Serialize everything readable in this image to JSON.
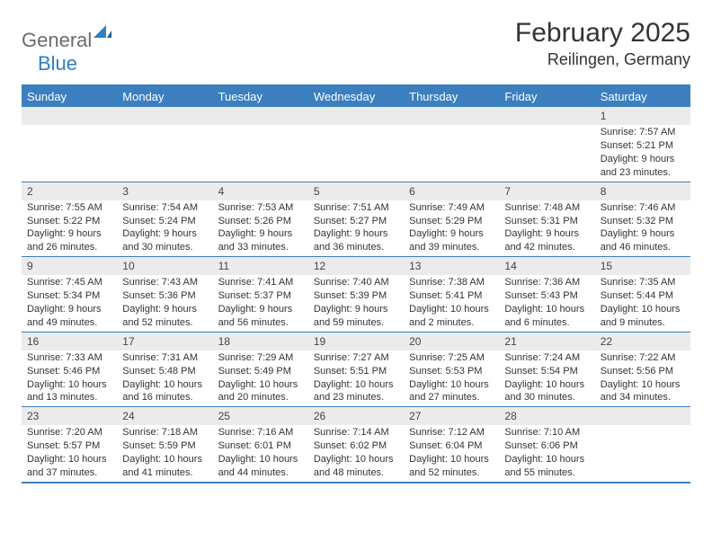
{
  "logo": {
    "text1": "General",
    "text2": "Blue"
  },
  "title": "February 2025",
  "location": "Reilingen, Germany",
  "colors": {
    "header_bg": "#3b7fbf",
    "header_text": "#ffffff",
    "daynum_bg": "#ebebeb",
    "border": "#3b7fbf",
    "logo_gray": "#6b6b6b",
    "logo_blue": "#2f7fc1",
    "text": "#333333",
    "page_bg": "#ffffff"
  },
  "day_headers": [
    "Sunday",
    "Monday",
    "Tuesday",
    "Wednesday",
    "Thursday",
    "Friday",
    "Saturday"
  ],
  "weeks": [
    [
      {
        "n": "",
        "lines": []
      },
      {
        "n": "",
        "lines": []
      },
      {
        "n": "",
        "lines": []
      },
      {
        "n": "",
        "lines": []
      },
      {
        "n": "",
        "lines": []
      },
      {
        "n": "",
        "lines": []
      },
      {
        "n": "1",
        "lines": [
          "Sunrise: 7:57 AM",
          "Sunset: 5:21 PM",
          "Daylight: 9 hours and 23 minutes."
        ]
      }
    ],
    [
      {
        "n": "2",
        "lines": [
          "Sunrise: 7:55 AM",
          "Sunset: 5:22 PM",
          "Daylight: 9 hours and 26 minutes."
        ]
      },
      {
        "n": "3",
        "lines": [
          "Sunrise: 7:54 AM",
          "Sunset: 5:24 PM",
          "Daylight: 9 hours and 30 minutes."
        ]
      },
      {
        "n": "4",
        "lines": [
          "Sunrise: 7:53 AM",
          "Sunset: 5:26 PM",
          "Daylight: 9 hours and 33 minutes."
        ]
      },
      {
        "n": "5",
        "lines": [
          "Sunrise: 7:51 AM",
          "Sunset: 5:27 PM",
          "Daylight: 9 hours and 36 minutes."
        ]
      },
      {
        "n": "6",
        "lines": [
          "Sunrise: 7:49 AM",
          "Sunset: 5:29 PM",
          "Daylight: 9 hours and 39 minutes."
        ]
      },
      {
        "n": "7",
        "lines": [
          "Sunrise: 7:48 AM",
          "Sunset: 5:31 PM",
          "Daylight: 9 hours and 42 minutes."
        ]
      },
      {
        "n": "8",
        "lines": [
          "Sunrise: 7:46 AM",
          "Sunset: 5:32 PM",
          "Daylight: 9 hours and 46 minutes."
        ]
      }
    ],
    [
      {
        "n": "9",
        "lines": [
          "Sunrise: 7:45 AM",
          "Sunset: 5:34 PM",
          "Daylight: 9 hours and 49 minutes."
        ]
      },
      {
        "n": "10",
        "lines": [
          "Sunrise: 7:43 AM",
          "Sunset: 5:36 PM",
          "Daylight: 9 hours and 52 minutes."
        ]
      },
      {
        "n": "11",
        "lines": [
          "Sunrise: 7:41 AM",
          "Sunset: 5:37 PM",
          "Daylight: 9 hours and 56 minutes."
        ]
      },
      {
        "n": "12",
        "lines": [
          "Sunrise: 7:40 AM",
          "Sunset: 5:39 PM",
          "Daylight: 9 hours and 59 minutes."
        ]
      },
      {
        "n": "13",
        "lines": [
          "Sunrise: 7:38 AM",
          "Sunset: 5:41 PM",
          "Daylight: 10 hours and 2 minutes."
        ]
      },
      {
        "n": "14",
        "lines": [
          "Sunrise: 7:36 AM",
          "Sunset: 5:43 PM",
          "Daylight: 10 hours and 6 minutes."
        ]
      },
      {
        "n": "15",
        "lines": [
          "Sunrise: 7:35 AM",
          "Sunset: 5:44 PM",
          "Daylight: 10 hours and 9 minutes."
        ]
      }
    ],
    [
      {
        "n": "16",
        "lines": [
          "Sunrise: 7:33 AM",
          "Sunset: 5:46 PM",
          "Daylight: 10 hours and 13 minutes."
        ]
      },
      {
        "n": "17",
        "lines": [
          "Sunrise: 7:31 AM",
          "Sunset: 5:48 PM",
          "Daylight: 10 hours and 16 minutes."
        ]
      },
      {
        "n": "18",
        "lines": [
          "Sunrise: 7:29 AM",
          "Sunset: 5:49 PM",
          "Daylight: 10 hours and 20 minutes."
        ]
      },
      {
        "n": "19",
        "lines": [
          "Sunrise: 7:27 AM",
          "Sunset: 5:51 PM",
          "Daylight: 10 hours and 23 minutes."
        ]
      },
      {
        "n": "20",
        "lines": [
          "Sunrise: 7:25 AM",
          "Sunset: 5:53 PM",
          "Daylight: 10 hours and 27 minutes."
        ]
      },
      {
        "n": "21",
        "lines": [
          "Sunrise: 7:24 AM",
          "Sunset: 5:54 PM",
          "Daylight: 10 hours and 30 minutes."
        ]
      },
      {
        "n": "22",
        "lines": [
          "Sunrise: 7:22 AM",
          "Sunset: 5:56 PM",
          "Daylight: 10 hours and 34 minutes."
        ]
      }
    ],
    [
      {
        "n": "23",
        "lines": [
          "Sunrise: 7:20 AM",
          "Sunset: 5:57 PM",
          "Daylight: 10 hours and 37 minutes."
        ]
      },
      {
        "n": "24",
        "lines": [
          "Sunrise: 7:18 AM",
          "Sunset: 5:59 PM",
          "Daylight: 10 hours and 41 minutes."
        ]
      },
      {
        "n": "25",
        "lines": [
          "Sunrise: 7:16 AM",
          "Sunset: 6:01 PM",
          "Daylight: 10 hours and 44 minutes."
        ]
      },
      {
        "n": "26",
        "lines": [
          "Sunrise: 7:14 AM",
          "Sunset: 6:02 PM",
          "Daylight: 10 hours and 48 minutes."
        ]
      },
      {
        "n": "27",
        "lines": [
          "Sunrise: 7:12 AM",
          "Sunset: 6:04 PM",
          "Daylight: 10 hours and 52 minutes."
        ]
      },
      {
        "n": "28",
        "lines": [
          "Sunrise: 7:10 AM",
          "Sunset: 6:06 PM",
          "Daylight: 10 hours and 55 minutes."
        ]
      },
      {
        "n": "",
        "lines": []
      }
    ]
  ]
}
